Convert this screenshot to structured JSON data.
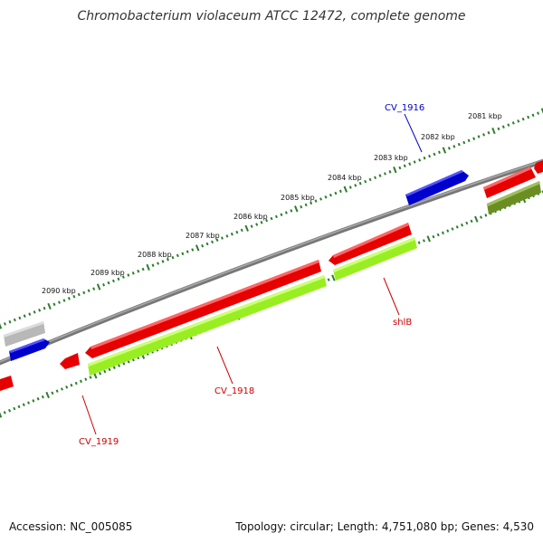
{
  "title": "Chromobacterium violaceum ATCC 12472, complete genome",
  "accession": "Accession: NC_005085",
  "summary": "Topology: circular; Length: 4,751,080 bp; Genes: 4,530",
  "kbp_labels": [
    "2081 kbp",
    "2082 kbp",
    "2083 kbp",
    "2084 kbp",
    "2085 kbp",
    "2086 kbp",
    "2087 kbp",
    "2088 kbp",
    "2089 kbp",
    "2090 kbp"
  ],
  "gene_labels": {
    "cv1916": "CV_1916",
    "shlb": "shlB",
    "cv1918": "CV_1918",
    "cv1919": "CV_1919"
  },
  "colors": {
    "backbone": "#777777",
    "outer_ticks": "#2e7d2e",
    "inner_ticks": "#2e7d2e",
    "cds_forward": "#0000cc",
    "cds_reverse": "#e60000",
    "gene_lightgreen": "#99ee22",
    "gene_olive": "#6b8e23",
    "gene_grey": "#b8b8b8",
    "label_blue": "#0000cc",
    "label_red": "#cc0000"
  }
}
